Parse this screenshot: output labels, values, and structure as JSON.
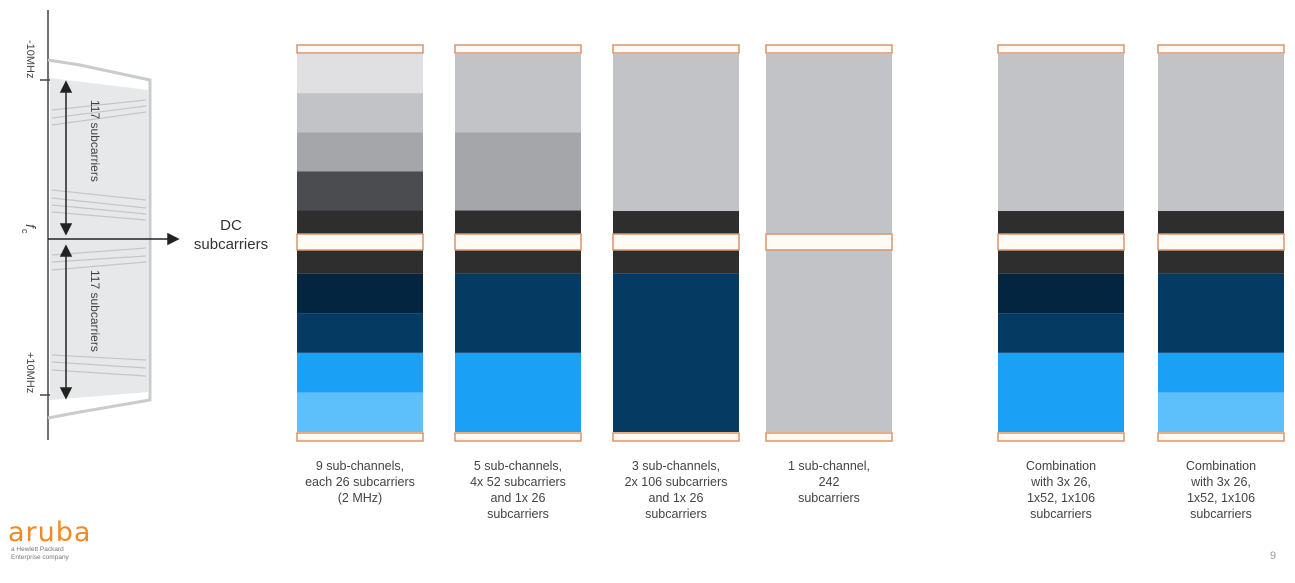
{
  "spectrum": {
    "upper_edge_label": "-10MHz",
    "lower_edge_label": "+10MHz",
    "center_label": "f",
    "center_sub": "c",
    "upper_span_label": "117 subcarriers",
    "lower_span_label": "117 subcarriers"
  },
  "dc_label": "DC\nsubcarriers",
  "colors": {
    "guard_fill": "#fffaf3",
    "guard_border": "#d9956a",
    "gray_1": "#e0e0e2",
    "gray_2": "#c2c3c6",
    "gray_3": "#a5a6a9",
    "dark_gray": "#4b4c4f",
    "near_black": "#2e2e2f",
    "navy_1": "#042540",
    "navy_2": "#053a62",
    "blue_1": "#1aa0f4",
    "blue_2": "#5ec0fb",
    "divider": "#6d8fa8"
  },
  "columns": [
    {
      "label": "9 sub-channels,\neach 26 subcarriers\n(2 MHz)",
      "blocks": [
        {
          "units": 1,
          "color": "#e0e0e2"
        },
        {
          "units": 1,
          "color": "#c2c3c6"
        },
        {
          "units": 1,
          "color": "#a5a6a9"
        },
        {
          "units": 1,
          "color": "#4b4c4f"
        },
        {
          "units": 0.6,
          "color": "#2e2e2f"
        },
        {
          "units": 0.6,
          "color": "#2e2e2f"
        },
        {
          "units": 1,
          "color": "#042540"
        },
        {
          "units": 1,
          "color": "#053a62"
        },
        {
          "units": 1,
          "color": "#1aa0f4"
        },
        {
          "units": 1,
          "color": "#5ec0fb"
        }
      ]
    },
    {
      "label": "5 sub-channels,\n4x 52 subcarriers\nand 1x 26\nsubcarriers",
      "blocks": [
        {
          "units": 2,
          "color": "#c2c3c6"
        },
        {
          "units": 2,
          "color": "#a5a6a9"
        },
        {
          "units": 0.6,
          "color": "#2e2e2f"
        },
        {
          "units": 0.6,
          "color": "#2e2e2f"
        },
        {
          "units": 2,
          "color": "#053a62"
        },
        {
          "units": 2,
          "color": "#1aa0f4"
        }
      ]
    },
    {
      "label": "3 sub-channels,\n2x 106 subcarriers\nand 1x 26\nsubcarriers",
      "blocks": [
        {
          "units": 4.1,
          "color": "#c2c3c6"
        },
        {
          "units": 0.6,
          "color": "#2e2e2f"
        },
        {
          "units": 0.6,
          "color": "#2e2e2f"
        },
        {
          "units": 4.1,
          "color": "#053a62"
        }
      ]
    },
    {
      "label": "1 sub-channel,\n242\nsubcarriers",
      "blocks": [
        {
          "units": 4.7,
          "color": "#c2c3c6"
        },
        {
          "units": 4.7,
          "color": "#c2c3c6"
        }
      ]
    },
    {
      "label": "Combination\nwith 3x 26,\n1x52, 1x106\nsubcarriers",
      "blocks": [
        {
          "units": 4.1,
          "color": "#c2c3c6"
        },
        {
          "units": 0.6,
          "color": "#2e2e2f"
        },
        {
          "units": 0.6,
          "color": "#2e2e2f"
        },
        {
          "units": 1,
          "color": "#042540"
        },
        {
          "units": 1,
          "color": "#053a62"
        },
        {
          "units": 2,
          "color": "#1aa0f4"
        }
      ]
    },
    {
      "label": "Combination\nwith 3x 26,\n1x52, 1x106\nsubcarriers",
      "blocks": [
        {
          "units": 4.1,
          "color": "#c2c3c6"
        },
        {
          "units": 0.6,
          "color": "#2e2e2f"
        },
        {
          "units": 0.6,
          "color": "#2e2e2f"
        },
        {
          "units": 2,
          "color": "#053a62"
        },
        {
          "units": 1,
          "color": "#1aa0f4"
        },
        {
          "units": 1,
          "color": "#5ec0fb"
        }
      ]
    }
  ],
  "logo": {
    "word": "aruba",
    "tagline": "a Hewlett Packard Enterprise company"
  },
  "page_number": "9"
}
